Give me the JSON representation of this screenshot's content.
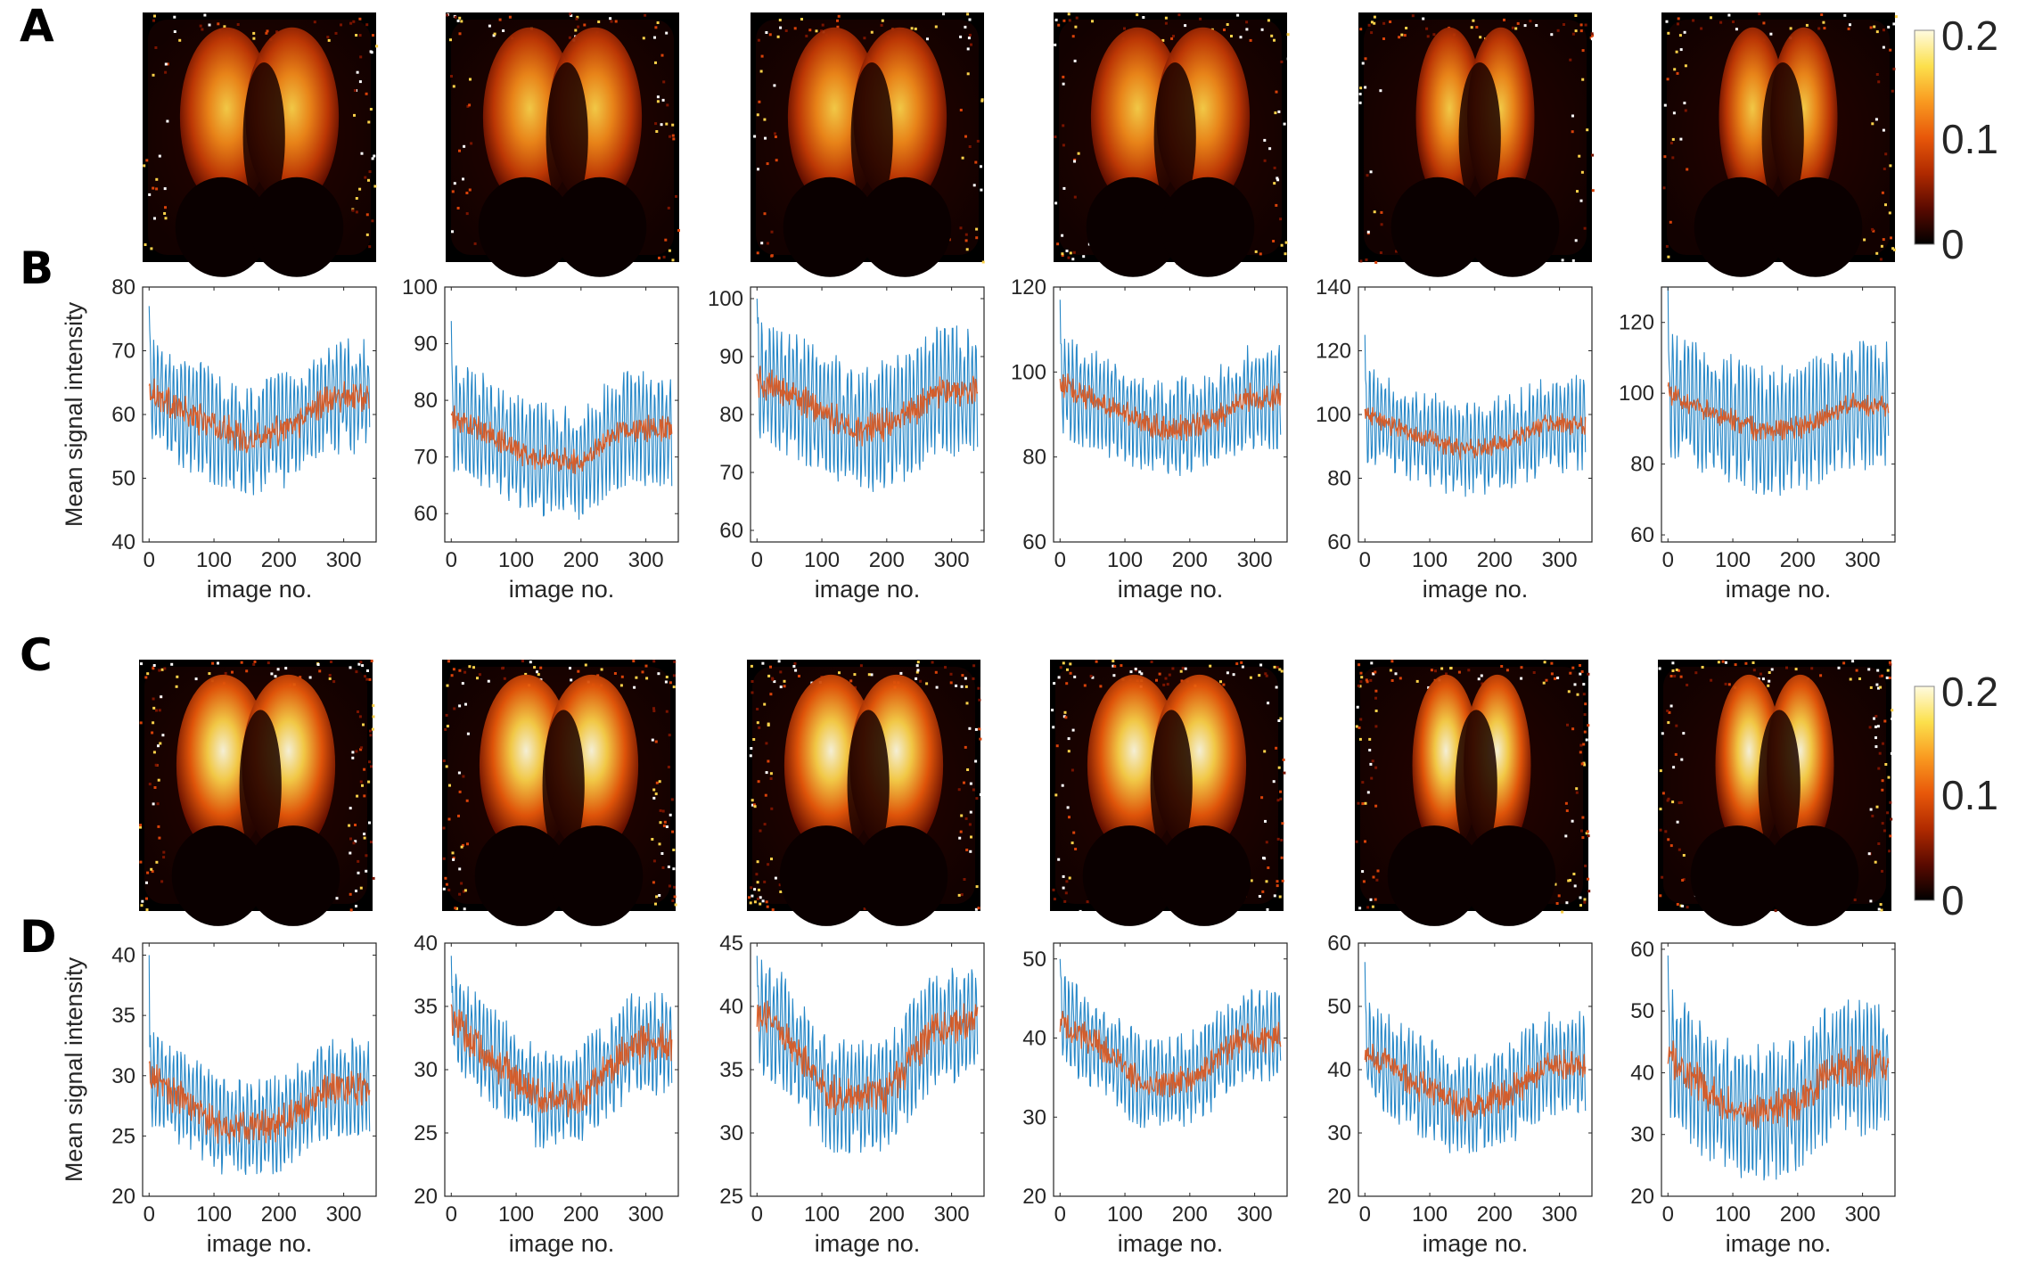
{
  "panels": {
    "A": "A",
    "B": "B",
    "C": "C",
    "D": "D"
  },
  "colorbar": {
    "ticks": [
      "0.2",
      "0.1",
      "0"
    ],
    "colors": [
      "#000000",
      "#5a0a00",
      "#b02a00",
      "#e8580a",
      "#f99a20",
      "#fce04c",
      "#fffbe0"
    ]
  },
  "chart_data": [
    {
      "panel": "B",
      "type": "line",
      "xlabel": "image no.",
      "ylabel": "Mean signal intensity",
      "xlim": [
        -10,
        350
      ],
      "ylim": [
        40,
        80
      ],
      "xticks": [
        0,
        100,
        200,
        300
      ],
      "yticks": [
        40,
        50,
        60,
        70,
        80
      ],
      "series": [
        {
          "color": "#0072bd",
          "style": "raw",
          "start": 77,
          "base": [
            [
              0,
              64
            ],
            [
              60,
              60
            ],
            [
              150,
              56
            ],
            [
              220,
              58
            ],
            [
              280,
              63
            ],
            [
              340,
              63
            ]
          ],
          "amp": 9
        },
        {
          "color": "#d95319",
          "style": "smooth",
          "base": [
            [
              0,
              64
            ],
            [
              60,
              60
            ],
            [
              150,
              56
            ],
            [
              220,
              58
            ],
            [
              280,
              63
            ],
            [
              340,
              63
            ]
          ],
          "amp": 2
        }
      ]
    },
    {
      "panel": "B",
      "type": "line",
      "xlabel": "image no.",
      "ylabel": "",
      "xlim": [
        -10,
        350
      ],
      "ylim": [
        55,
        100
      ],
      "xticks": [
        0,
        100,
        200,
        300
      ],
      "yticks": [
        60,
        70,
        80,
        90,
        100
      ],
      "series": [
        {
          "color": "#0072bd",
          "style": "raw",
          "start": 94,
          "base": [
            [
              0,
              77
            ],
            [
              60,
              74
            ],
            [
              120,
              70
            ],
            [
              200,
              69
            ],
            [
              260,
              75
            ],
            [
              340,
              75
            ]
          ],
          "amp": 10
        },
        {
          "color": "#d95319",
          "style": "smooth",
          "base": [
            [
              0,
              77
            ],
            [
              60,
              74
            ],
            [
              120,
              70
            ],
            [
              200,
              69
            ],
            [
              260,
              75
            ],
            [
              340,
              75
            ]
          ],
          "amp": 1.8
        }
      ]
    },
    {
      "panel": "B",
      "type": "line",
      "xlabel": "image no.",
      "ylabel": "",
      "xlim": [
        -10,
        350
      ],
      "ylim": [
        58,
        102
      ],
      "xticks": [
        0,
        100,
        200,
        300
      ],
      "yticks": [
        60,
        70,
        80,
        90,
        100
      ],
      "series": [
        {
          "color": "#0072bd",
          "style": "raw",
          "start": 100,
          "base": [
            [
              0,
              86
            ],
            [
              60,
              83
            ],
            [
              150,
              77
            ],
            [
              220,
              79
            ],
            [
              280,
              84
            ],
            [
              340,
              84
            ]
          ],
          "amp": 11
        },
        {
          "color": "#d95319",
          "style": "smooth",
          "base": [
            [
              0,
              86
            ],
            [
              60,
              83
            ],
            [
              150,
              77
            ],
            [
              220,
              79
            ],
            [
              280,
              84
            ],
            [
              340,
              84
            ]
          ],
          "amp": 2.2
        }
      ]
    },
    {
      "panel": "B",
      "type": "line",
      "xlabel": "image no.",
      "ylabel": "",
      "xlim": [
        -10,
        350
      ],
      "ylim": [
        60,
        120
      ],
      "xticks": [
        0,
        100,
        200,
        300
      ],
      "yticks": [
        60,
        80,
        100,
        120
      ],
      "series": [
        {
          "color": "#0072bd",
          "style": "raw",
          "start": 117,
          "base": [
            [
              0,
              97
            ],
            [
              60,
              93
            ],
            [
              170,
              86
            ],
            [
              240,
              89
            ],
            [
              290,
              94
            ],
            [
              340,
              94
            ]
          ],
          "amp": 12
        },
        {
          "color": "#d95319",
          "style": "smooth",
          "base": [
            [
              0,
              97
            ],
            [
              60,
              93
            ],
            [
              170,
              86
            ],
            [
              240,
              89
            ],
            [
              290,
              94
            ],
            [
              340,
              94
            ]
          ],
          "amp": 2.5
        }
      ]
    },
    {
      "panel": "B",
      "type": "line",
      "xlabel": "image no.",
      "ylabel": "",
      "xlim": [
        -10,
        350
      ],
      "ylim": [
        60,
        140
      ],
      "xticks": [
        0,
        100,
        200,
        300
      ],
      "yticks": [
        60,
        80,
        100,
        120,
        140
      ],
      "series": [
        {
          "color": "#0072bd",
          "style": "raw",
          "start": 125,
          "base": [
            [
              0,
              100
            ],
            [
              60,
              95
            ],
            [
              150,
              89
            ],
            [
              220,
              91
            ],
            [
              280,
              97
            ],
            [
              340,
              97
            ]
          ],
          "amp": 15
        },
        {
          "color": "#d95319",
          "style": "smooth",
          "base": [
            [
              0,
              100
            ],
            [
              60,
              95
            ],
            [
              150,
              89
            ],
            [
              220,
              91
            ],
            [
              280,
              97
            ],
            [
              340,
              97
            ]
          ],
          "amp": 2.5
        }
      ]
    },
    {
      "panel": "B",
      "type": "line",
      "xlabel": "image no.",
      "ylabel": "",
      "xlim": [
        -10,
        350
      ],
      "ylim": [
        58,
        130
      ],
      "xticks": [
        0,
        100,
        200,
        300
      ],
      "yticks": [
        60,
        80,
        100,
        120
      ],
      "series": [
        {
          "color": "#0072bd",
          "style": "raw",
          "start": 130,
          "base": [
            [
              0,
              100
            ],
            [
              60,
              95
            ],
            [
              150,
              89
            ],
            [
              220,
              91
            ],
            [
              280,
              97
            ],
            [
              340,
              96
            ]
          ],
          "amp": 18
        },
        {
          "color": "#d95319",
          "style": "smooth",
          "base": [
            [
              0,
              100
            ],
            [
              60,
              95
            ],
            [
              150,
              89
            ],
            [
              220,
              91
            ],
            [
              280,
              97
            ],
            [
              340,
              96
            ]
          ],
          "amp": 2.5
        }
      ]
    },
    {
      "panel": "D",
      "type": "line",
      "xlabel": "image no.",
      "ylabel": "Mean signal intensity",
      "xlim": [
        -10,
        350
      ],
      "ylim": [
        20,
        41
      ],
      "xticks": [
        0,
        100,
        200,
        300
      ],
      "yticks": [
        20,
        25,
        30,
        35,
        40
      ],
      "series": [
        {
          "color": "#0072bd",
          "style": "raw",
          "start": 40,
          "base": [
            [
              0,
              30
            ],
            [
              50,
              28
            ],
            [
              120,
              25.5
            ],
            [
              200,
              26
            ],
            [
              280,
              29
            ],
            [
              340,
              29
            ]
          ],
          "amp": 4
        },
        {
          "color": "#d95319",
          "style": "smooth",
          "base": [
            [
              0,
              30
            ],
            [
              50,
              28
            ],
            [
              120,
              25.5
            ],
            [
              200,
              26
            ],
            [
              280,
              29
            ],
            [
              340,
              29
            ]
          ],
          "amp": 1.2
        }
      ]
    },
    {
      "panel": "D",
      "type": "line",
      "xlabel": "image no.",
      "ylabel": "",
      "xlim": [
        -10,
        350
      ],
      "ylim": [
        20,
        40
      ],
      "xticks": [
        0,
        100,
        200,
        300
      ],
      "yticks": [
        20,
        25,
        30,
        35,
        40
      ],
      "series": [
        {
          "color": "#0072bd",
          "style": "raw",
          "start": 39,
          "base": [
            [
              0,
              34
            ],
            [
              60,
              31
            ],
            [
              140,
              27.5
            ],
            [
              200,
              28
            ],
            [
              280,
              32
            ],
            [
              340,
              32
            ]
          ],
          "amp": 4
        },
        {
          "color": "#d95319",
          "style": "smooth",
          "base": [
            [
              0,
              34
            ],
            [
              60,
              31
            ],
            [
              140,
              27.5
            ],
            [
              200,
              28
            ],
            [
              280,
              32
            ],
            [
              340,
              32
            ]
          ],
          "amp": 1.2
        }
      ]
    },
    {
      "panel": "D",
      "type": "line",
      "xlabel": "image no.",
      "ylabel": "",
      "xlim": [
        -10,
        350
      ],
      "ylim": [
        25,
        45
      ],
      "xticks": [
        0,
        100,
        200,
        300
      ],
      "yticks": [
        25,
        30,
        35,
        40,
        45
      ],
      "series": [
        {
          "color": "#0072bd",
          "style": "raw",
          "start": 44,
          "base": [
            [
              0,
              39.5
            ],
            [
              40,
              38
            ],
            [
              110,
              33
            ],
            [
              200,
              33
            ],
            [
              270,
              38
            ],
            [
              340,
              39
            ]
          ],
          "amp": 4.5
        },
        {
          "color": "#d95319",
          "style": "smooth",
          "base": [
            [
              0,
              39.5
            ],
            [
              40,
              38
            ],
            [
              110,
              33
            ],
            [
              200,
              33
            ],
            [
              270,
              38
            ],
            [
              340,
              39
            ]
          ],
          "amp": 1.2
        }
      ]
    },
    {
      "panel": "D",
      "type": "line",
      "xlabel": "image no.",
      "ylabel": "",
      "xlim": [
        -10,
        350
      ],
      "ylim": [
        20,
        52
      ],
      "xticks": [
        0,
        100,
        200,
        300
      ],
      "yticks": [
        20,
        30,
        40,
        50
      ],
      "series": [
        {
          "color": "#0072bd",
          "style": "raw",
          "start": 50,
          "base": [
            [
              0,
              42
            ],
            [
              60,
              39
            ],
            [
              130,
              34
            ],
            [
              210,
              35
            ],
            [
              280,
              40
            ],
            [
              340,
              40
            ]
          ],
          "amp": 6
        },
        {
          "color": "#d95319",
          "style": "smooth",
          "base": [
            [
              0,
              42
            ],
            [
              60,
              39
            ],
            [
              130,
              34
            ],
            [
              210,
              35
            ],
            [
              280,
              40
            ],
            [
              340,
              40
            ]
          ],
          "amp": 1.5
        }
      ]
    },
    {
      "panel": "D",
      "type": "line",
      "xlabel": "image no.",
      "ylabel": "",
      "xlim": [
        -10,
        350
      ],
      "ylim": [
        20,
        60
      ],
      "xticks": [
        0,
        100,
        200,
        300
      ],
      "yticks": [
        20,
        30,
        40,
        50,
        60
      ],
      "series": [
        {
          "color": "#0072bd",
          "style": "raw",
          "start": 57,
          "base": [
            [
              0,
              43
            ],
            [
              60,
              39
            ],
            [
              150,
              34
            ],
            [
              220,
              36
            ],
            [
              280,
              41
            ],
            [
              340,
              41
            ]
          ],
          "amp": 8
        },
        {
          "color": "#d95319",
          "style": "smooth",
          "base": [
            [
              0,
              43
            ],
            [
              60,
              39
            ],
            [
              150,
              34
            ],
            [
              220,
              36
            ],
            [
              280,
              41
            ],
            [
              340,
              41
            ]
          ],
          "amp": 2
        }
      ]
    },
    {
      "panel": "D",
      "type": "line",
      "xlabel": "image no.",
      "ylabel": "",
      "xlim": [
        -10,
        350
      ],
      "ylim": [
        20,
        61
      ],
      "xticks": [
        0,
        100,
        200,
        300
      ],
      "yticks": [
        20,
        30,
        40,
        50,
        60
      ],
      "series": [
        {
          "color": "#0072bd",
          "style": "raw",
          "start": 59,
          "base": [
            [
              0,
              43
            ],
            [
              60,
              37
            ],
            [
              130,
              33
            ],
            [
              200,
              35
            ],
            [
              260,
              41
            ],
            [
              340,
              41
            ]
          ],
          "amp": 11
        },
        {
          "color": "#d95319",
          "style": "smooth",
          "base": [
            [
              0,
              43
            ],
            [
              60,
              37
            ],
            [
              130,
              33
            ],
            [
              200,
              35
            ],
            [
              260,
              41
            ],
            [
              340,
              41
            ]
          ],
          "amp": 2.5
        }
      ]
    }
  ]
}
